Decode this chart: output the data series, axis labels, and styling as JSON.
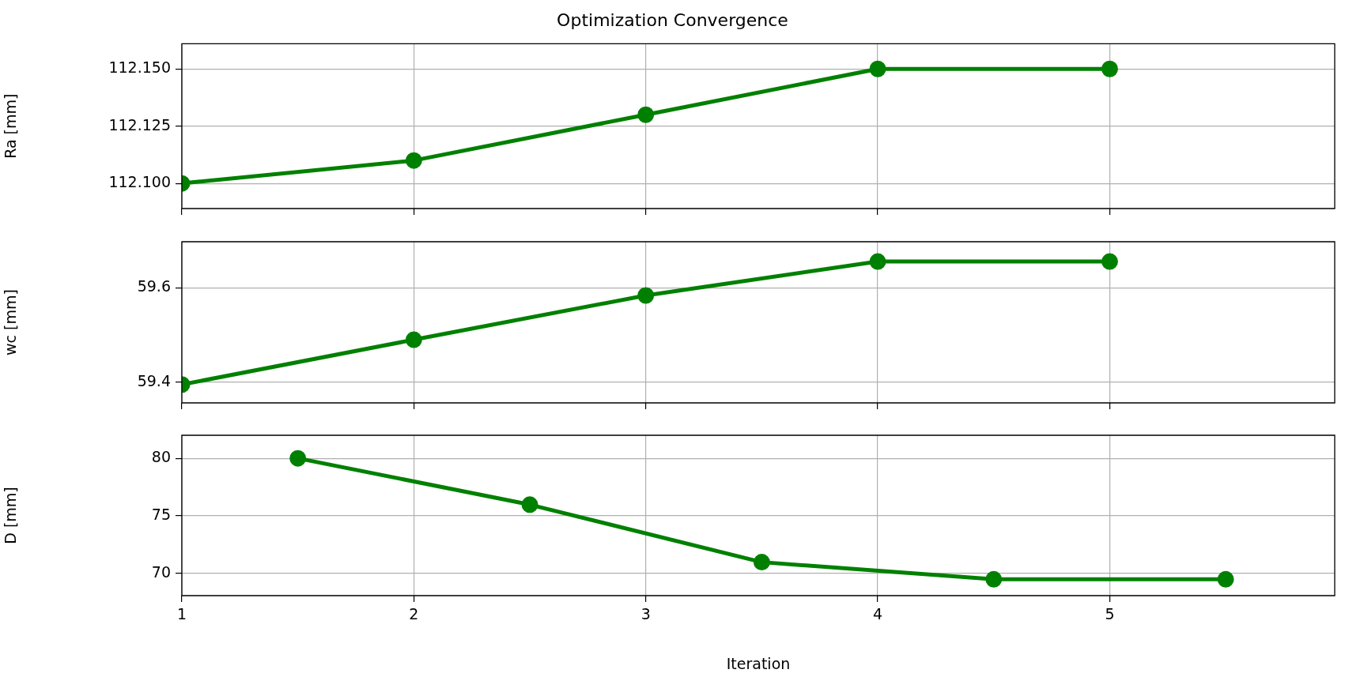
{
  "chart_data": [
    {
      "type": "line",
      "title": "Optimization Convergence",
      "ylabel": "Ra [mm]",
      "x": [
        1,
        2,
        3,
        4,
        5
      ],
      "values": [
        112.1,
        112.11,
        112.13,
        112.15,
        112.15
      ],
      "color": "#008000",
      "xlim": [
        1,
        5.97
      ],
      "xticks": [
        1,
        2,
        3,
        4,
        5
      ],
      "ylim": [
        112.089,
        112.161
      ],
      "yticks": [
        {
          "value": 112.1,
          "label": "112.100"
        },
        {
          "value": 112.125,
          "label": "112.125"
        },
        {
          "value": 112.15,
          "label": "112.150"
        }
      ],
      "grid": true,
      "marker": "circle",
      "tick_labels": "y"
    },
    {
      "type": "line",
      "ylabel": "wc [mm]",
      "x": [
        1,
        2,
        3,
        4,
        5
      ],
      "values": [
        59.395,
        59.49,
        59.584,
        59.656,
        59.656
      ],
      "color": "#008000",
      "xlim": [
        1,
        5.97
      ],
      "xticks": [
        1,
        2,
        3,
        4,
        5
      ],
      "ylim": [
        59.356,
        59.698
      ],
      "yticks": [
        59.4,
        59.6
      ],
      "grid": true,
      "marker": "circle",
      "tick_labels": "y"
    },
    {
      "type": "line",
      "ylabel": "D [mm]",
      "xlabel": "Iteration",
      "x": [
        1.5,
        2.5,
        3.5,
        4.5,
        5.5
      ],
      "values": [
        80,
        75.97,
        70.97,
        69.48,
        69.48
      ],
      "color": "#008000",
      "xlim": [
        1,
        5.97
      ],
      "xticks": [
        1,
        2,
        3,
        4,
        5
      ],
      "ylim": [
        68.06,
        82
      ],
      "yticks": [
        70,
        75,
        80
      ],
      "grid": true,
      "marker": "circle"
    }
  ]
}
